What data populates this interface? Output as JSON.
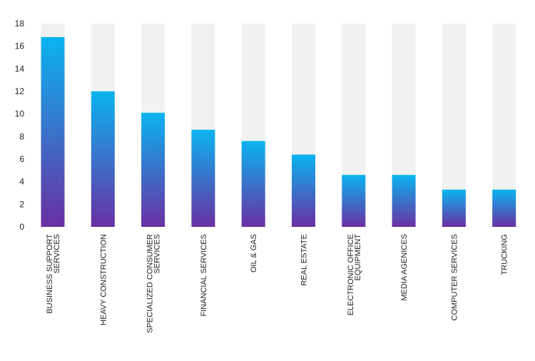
{
  "chart_data": {
    "type": "bar",
    "categories": [
      "BUSINESS SUPPORT SERVICES",
      "HEAVY CONSTRUCTION",
      "SPECIALIZED CONSUMER SERVICES",
      "FINANCIAL SERVICES",
      "OIL & GAS",
      "REAL ESTATE",
      "ELECTRONIC OFFICE EQUIPMENT",
      "MEDIA AGENICES",
      "COMPUTER SERVICES",
      "TRUCKING"
    ],
    "category_lines": [
      [
        "BUSINESS SUPPORT",
        "SERVICES"
      ],
      [
        "HEAVY CONSTRUCTION"
      ],
      [
        "SPECIALIZED CONSUMER",
        "SERVICES"
      ],
      [
        "FINANCIAL SERVICES"
      ],
      [
        "OIL & GAS"
      ],
      [
        "REAL ESTATE"
      ],
      [
        "ELECTRONIC OFFICE",
        "EQUIPMENT"
      ],
      [
        "MEDIA AGENICES"
      ],
      [
        "COMPUTER SERVICES"
      ],
      [
        "TRUCKING"
      ]
    ],
    "values": [
      16.8,
      12.0,
      10.1,
      8.6,
      7.6,
      6.4,
      4.6,
      4.6,
      3.3,
      3.3
    ],
    "ylim": [
      0,
      18
    ],
    "yticks": [
      0,
      2,
      4,
      6,
      8,
      10,
      12,
      14,
      16,
      18
    ],
    "title": "",
    "xlabel": "",
    "ylabel": "",
    "grid": false,
    "legend": "none"
  },
  "colors": {
    "bar_top": "#0ab4f0",
    "bar_bottom": "#6a2fa3",
    "track": "#f1f1f1",
    "text": "#222222"
  }
}
